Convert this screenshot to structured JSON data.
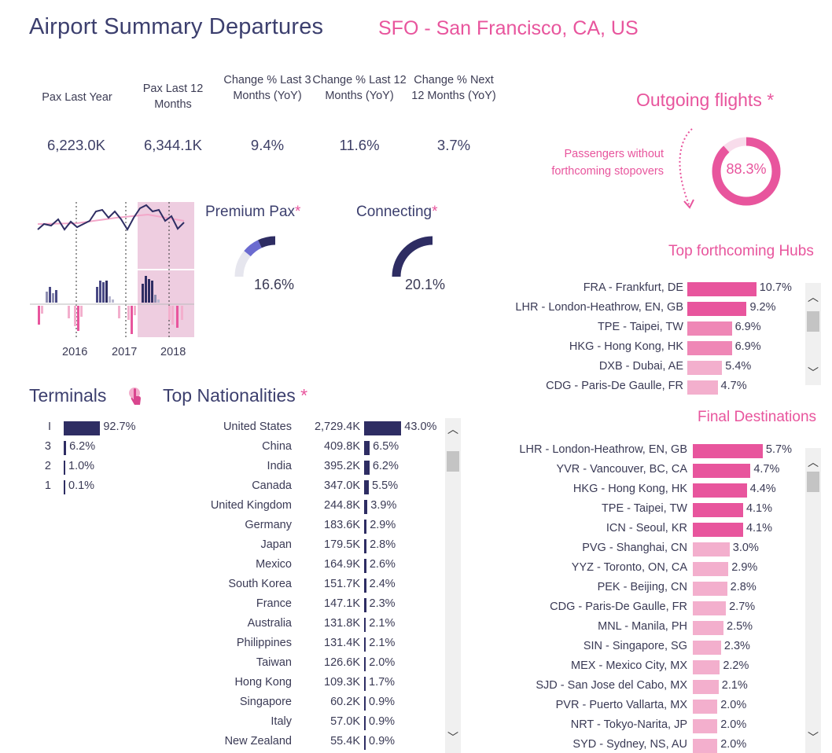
{
  "header": {
    "title": "Airport Summary Departures",
    "subtitle": "SFO - San Francisco, CA, US"
  },
  "kpis": [
    {
      "label": "Pax Last Year",
      "value": "6,223.0K"
    },
    {
      "label": "Pax Last 12 Months",
      "value": "6,344.1K"
    },
    {
      "label": "Change % Last 3 Months (YoY)",
      "value": "9.4%"
    },
    {
      "label": "Change % Last 12 Months (YoY)",
      "value": "11.6%"
    },
    {
      "label": "Change % Next 12 Months (YoY)",
      "value": "3.7%"
    }
  ],
  "outgoing": {
    "title": "Outgoing flights",
    "star": "*",
    "caption": "Passengers without forthcoming stopovers",
    "value": "88.3%",
    "fraction": 0.883,
    "color": "#e8559d"
  },
  "trend_chart": {
    "years": [
      "2016",
      "2017",
      "2018"
    ]
  },
  "premium": {
    "title": "Premium Pax",
    "star": "*",
    "value": "16.6%",
    "fraction": 0.166
  },
  "connecting": {
    "title": "Connecting",
    "star": "*",
    "value": "20.1%",
    "fraction": 0.201
  },
  "hubs": {
    "title": "Top forthcoming Hubs",
    "rows": [
      {
        "label": "FRA - Frankfurt, DE",
        "value": "10.7%",
        "pct": 10.7
      },
      {
        "label": "LHR - London-Heathrow, EN, GB",
        "value": "9.2%",
        "pct": 9.2
      },
      {
        "label": "TPE - Taipei, TW",
        "value": "6.9%",
        "pct": 6.9
      },
      {
        "label": "HKG - Hong Kong, HK",
        "value": "6.9%",
        "pct": 6.9
      },
      {
        "label": "DXB - Dubai, AE",
        "value": "5.4%",
        "pct": 5.4
      },
      {
        "label": "CDG - Paris-De Gaulle, FR",
        "value": "4.7%",
        "pct": 4.7
      }
    ]
  },
  "terminals": {
    "title": "Terminals",
    "icon": "pointer-hand-icon",
    "rows": [
      {
        "label": "I",
        "value": "92.7%",
        "pct": 92.7
      },
      {
        "label": "3",
        "value": "6.2%",
        "pct": 6.2
      },
      {
        "label": "2",
        "value": "1.0%",
        "pct": 1.0
      },
      {
        "label": "1",
        "value": "0.1%",
        "pct": 0.1
      }
    ]
  },
  "nationalities": {
    "title": "Top Nationalities",
    "star": "*",
    "rows": [
      {
        "label": "United States",
        "pax": "2,729.4K",
        "value": "43.0%",
        "pct": 43.0
      },
      {
        "label": "China",
        "pax": "409.8K",
        "value": "6.5%",
        "pct": 6.5
      },
      {
        "label": "India",
        "pax": "395.2K",
        "value": "6.2%",
        "pct": 6.2
      },
      {
        "label": "Canada",
        "pax": "347.0K",
        "value": "5.5%",
        "pct": 5.5
      },
      {
        "label": "United Kingdom",
        "pax": "244.8K",
        "value": "3.9%",
        "pct": 3.9
      },
      {
        "label": "Germany",
        "pax": "183.6K",
        "value": "2.9%",
        "pct": 2.9
      },
      {
        "label": "Japan",
        "pax": "179.5K",
        "value": "2.8%",
        "pct": 2.8
      },
      {
        "label": "Mexico",
        "pax": "164.9K",
        "value": "2.6%",
        "pct": 2.6
      },
      {
        "label": "South Korea",
        "pax": "151.7K",
        "value": "2.4%",
        "pct": 2.4
      },
      {
        "label": "France",
        "pax": "147.1K",
        "value": "2.3%",
        "pct": 2.3
      },
      {
        "label": "Australia",
        "pax": "131.8K",
        "value": "2.1%",
        "pct": 2.1
      },
      {
        "label": "Philippines",
        "pax": "131.4K",
        "value": "2.1%",
        "pct": 2.1
      },
      {
        "label": "Taiwan",
        "pax": "126.6K",
        "value": "2.0%",
        "pct": 2.0
      },
      {
        "label": "Hong Kong",
        "pax": "109.3K",
        "value": "1.7%",
        "pct": 1.7
      },
      {
        "label": "Singapore",
        "pax": "60.2K",
        "value": "0.9%",
        "pct": 0.9
      },
      {
        "label": "Italy",
        "pax": "57.0K",
        "value": "0.9%",
        "pct": 0.9
      },
      {
        "label": "New Zealand",
        "pax": "55.4K",
        "value": "0.9%",
        "pct": 0.9
      }
    ]
  },
  "destinations": {
    "title": "Final Destinations",
    "rows": [
      {
        "label": "LHR - London-Heathrow, EN, GB",
        "value": "5.7%",
        "pct": 5.7
      },
      {
        "label": "YVR - Vancouver, BC, CA",
        "value": "4.7%",
        "pct": 4.7
      },
      {
        "label": "HKG - Hong Kong, HK",
        "value": "4.4%",
        "pct": 4.4
      },
      {
        "label": "TPE - Taipei, TW",
        "value": "4.1%",
        "pct": 4.1
      },
      {
        "label": "ICN - Seoul, KR",
        "value": "4.1%",
        "pct": 4.1
      },
      {
        "label": "PVG - Shanghai, CN",
        "value": "3.0%",
        "pct": 3.0
      },
      {
        "label": "YYZ - Toronto, ON, CA",
        "value": "2.9%",
        "pct": 2.9
      },
      {
        "label": "PEK - Beijing, CN",
        "value": "2.8%",
        "pct": 2.8
      },
      {
        "label": "CDG - Paris-De Gaulle, FR",
        "value": "2.7%",
        "pct": 2.7
      },
      {
        "label": "MNL - Manila, PH",
        "value": "2.5%",
        "pct": 2.5
      },
      {
        "label": "SIN - Singapore, SG",
        "value": "2.3%",
        "pct": 2.3
      },
      {
        "label": "MEX - Mexico City, MX",
        "value": "2.2%",
        "pct": 2.2
      },
      {
        "label": "SJD - San Jose del Cabo, MX",
        "value": "2.1%",
        "pct": 2.1
      },
      {
        "label": "PVR - Puerto Vallarta, MX",
        "value": "2.0%",
        "pct": 2.0
      },
      {
        "label": "NRT - Tokyo-Narita, JP",
        "value": "2.0%",
        "pct": 2.0
      },
      {
        "label": "SYD - Sydney, NS, AU",
        "value": "2.0%",
        "pct": 2.0
      }
    ]
  },
  "colors": {
    "navy": "#2e2d63",
    "pink": "#e8559d",
    "pink_mid": "#ef87b6",
    "pink_light": "#f3afcd",
    "highlight": "#eecde0"
  }
}
